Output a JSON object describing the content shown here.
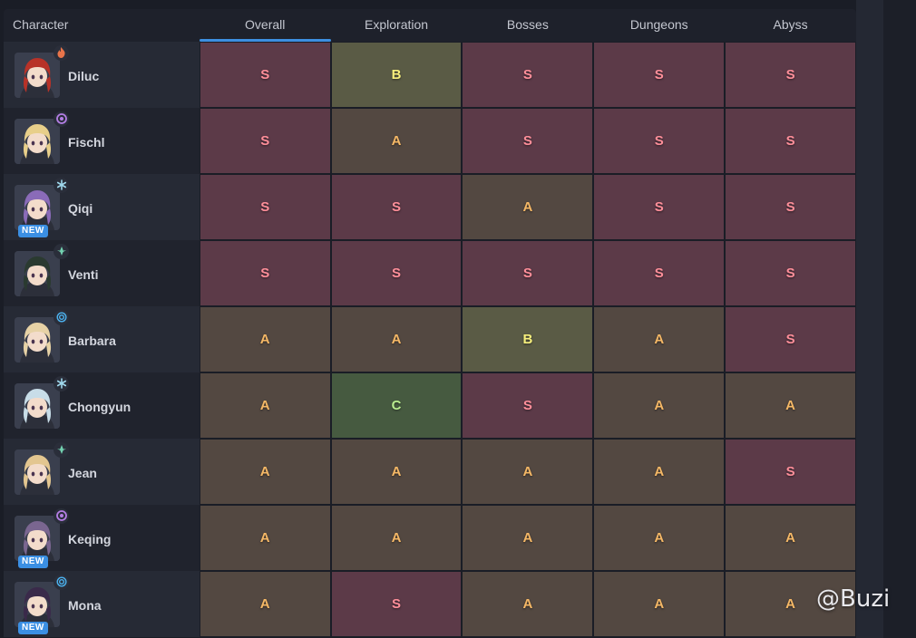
{
  "header": {
    "character_label": "Character",
    "categories": [
      "Overall",
      "Exploration",
      "Bosses",
      "Dungeons",
      "Abyss"
    ],
    "active_tab": "Overall"
  },
  "rows": [
    {
      "name": "Diluc",
      "element": "pyro-icon",
      "element_color": "#e8744a",
      "new": false,
      "hair": "#b83228",
      "grades": [
        "S",
        "B",
        "S",
        "S",
        "S"
      ]
    },
    {
      "name": "Fischl",
      "element": "electro-icon",
      "element_color": "#b47ee5",
      "new": false,
      "hair": "#e8cf8a",
      "grades": [
        "S",
        "A",
        "S",
        "S",
        "S"
      ]
    },
    {
      "name": "Qiqi",
      "element": "cryo-icon",
      "element_color": "#9fd8ec",
      "new": true,
      "hair": "#8a6bb8",
      "grades": [
        "S",
        "S",
        "A",
        "S",
        "S"
      ]
    },
    {
      "name": "Venti",
      "element": "anemo-icon",
      "element_color": "#73d1b0",
      "new": false,
      "hair": "#2a3a30",
      "grades": [
        "S",
        "S",
        "S",
        "S",
        "S"
      ]
    },
    {
      "name": "Barbara",
      "element": "hydro-icon",
      "element_color": "#4cb3f0",
      "new": false,
      "hair": "#e7d2a6",
      "grades": [
        "A",
        "A",
        "B",
        "A",
        "S"
      ]
    },
    {
      "name": "Chongyun",
      "element": "cryo-icon",
      "element_color": "#9fd8ec",
      "new": false,
      "hair": "#c8dde8",
      "grades": [
        "A",
        "C",
        "S",
        "A",
        "A"
      ]
    },
    {
      "name": "Jean",
      "element": "anemo-icon",
      "element_color": "#73d1b0",
      "new": false,
      "hair": "#e3c690",
      "grades": [
        "A",
        "A",
        "A",
        "A",
        "S"
      ]
    },
    {
      "name": "Keqing",
      "element": "electro-icon",
      "element_color": "#b47ee5",
      "new": true,
      "hair": "#7a6690",
      "grades": [
        "A",
        "A",
        "A",
        "A",
        "A"
      ]
    },
    {
      "name": "Mona",
      "element": "hydro-icon",
      "element_color": "#4cb3f0",
      "new": true,
      "hair": "#3a2a4a",
      "grades": [
        "A",
        "S",
        "A",
        "A",
        "A"
      ]
    }
  ],
  "new_badge_label": "NEW",
  "watermark": "@Buzi"
}
